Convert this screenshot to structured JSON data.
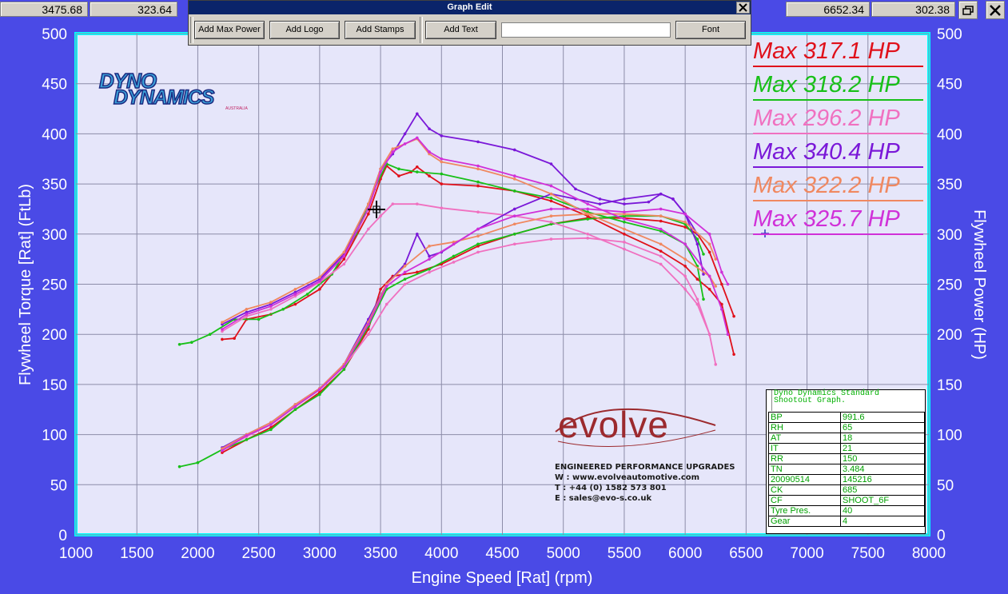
{
  "readouts": {
    "left_x": "3475.68",
    "left_y": "323.64",
    "right_x": "6652.34",
    "right_y": "302.38"
  },
  "dialog": {
    "title": "Graph Edit",
    "buttons": {
      "add_max_power": "Add Max Power",
      "add_logo": "Add Logo",
      "add_stamps": "Add Stamps",
      "add_text": "Add Text",
      "font": "Font"
    },
    "text_value": ""
  },
  "icons": {
    "restore": "restore-window-icon",
    "close": "close-icon",
    "dialog_close": "close-icon",
    "cursor": "crosshair-cursor-icon"
  },
  "logos": {
    "dyno_line1": "DYNO",
    "dyno_line2": "DYNAMICS",
    "dyno_small": "AUSTRALIA",
    "evolve_word": "evolve",
    "evolve_lines": [
      "ENGINEERED PERFORMANCE UPGRADES",
      "W : www.evolveautomotive.com",
      "T : +44 (0) 1582 573 801",
      "E : sales@evo-s.co.uk"
    ]
  },
  "info_box": {
    "header": [
      "Dyno Dynamics Standard",
      "Shootout Graph."
    ],
    "rows": [
      [
        "BP",
        "991.6"
      ],
      [
        "RH",
        "65"
      ],
      [
        "AT",
        "18"
      ],
      [
        "IT",
        "21"
      ],
      [
        "RR",
        "150"
      ],
      [
        "TN",
        "3.484"
      ],
      [
        "20090514",
        "145216"
      ],
      [
        "CK",
        "685"
      ],
      [
        "CF",
        "SHOOT_6F"
      ],
      [
        "Tyre Pres.",
        "40"
      ],
      [
        "Gear",
        "4"
      ]
    ]
  },
  "colors": {
    "background": "#4a4ae6",
    "plot_bg": "#e6e6fa",
    "plot_border": "#00ffff",
    "grid": "#9090a8",
    "axis_text": "#ffffff"
  },
  "chart_data": {
    "type": "line",
    "xlabel": "Engine Speed [Rat] (rpm)",
    "ylabel_left": "Flywheel Torque [Rat] (FtLb)",
    "ylabel_right": "Flywheel Power (HP)",
    "xlim": [
      1000,
      8000
    ],
    "ylim": [
      0,
      500
    ],
    "x_ticks": [
      1000,
      1500,
      2000,
      2500,
      3000,
      3500,
      4000,
      4500,
      5000,
      5500,
      6000,
      6500,
      7000,
      7500,
      8000
    ],
    "y_ticks": [
      0,
      50,
      100,
      150,
      200,
      250,
      300,
      350,
      400,
      450,
      500
    ],
    "grid": true,
    "legend_position": "top-right",
    "series": [
      {
        "name": "Max 317.1 HP",
        "color": "#e0101a",
        "torque": [
          [
            2200,
            195
          ],
          [
            2300,
            196
          ],
          [
            2400,
            215
          ],
          [
            2600,
            220
          ],
          [
            2800,
            230
          ],
          [
            3000,
            245
          ],
          [
            3200,
            275
          ],
          [
            3400,
            320
          ],
          [
            3500,
            355
          ],
          [
            3550,
            368
          ],
          [
            3650,
            358
          ],
          [
            3750,
            362
          ],
          [
            3800,
            367
          ],
          [
            3900,
            358
          ],
          [
            4000,
            350
          ],
          [
            4300,
            348
          ],
          [
            4600,
            343
          ],
          [
            4900,
            333
          ],
          [
            5200,
            318
          ],
          [
            5500,
            300
          ],
          [
            5800,
            283
          ],
          [
            6000,
            268
          ],
          [
            6100,
            255
          ],
          [
            6200,
            245
          ],
          [
            6300,
            230
          ],
          [
            6400,
            180
          ]
        ],
        "power": [
          [
            2200,
            82
          ],
          [
            2400,
            95
          ],
          [
            2600,
            107
          ],
          [
            2800,
            125
          ],
          [
            3000,
            142
          ],
          [
            3200,
            165
          ],
          [
            3400,
            205
          ],
          [
            3500,
            245
          ],
          [
            3600,
            258
          ],
          [
            3800,
            262
          ],
          [
            4000,
            270
          ],
          [
            4300,
            288
          ],
          [
            4600,
            300
          ],
          [
            4900,
            310
          ],
          [
            5200,
            316
          ],
          [
            5500,
            316
          ],
          [
            5800,
            313
          ],
          [
            6000,
            307
          ],
          [
            6100,
            300
          ],
          [
            6200,
            282
          ],
          [
            6300,
            250
          ],
          [
            6400,
            218
          ]
        ]
      },
      {
        "name": "Max 318.2 HP",
        "color": "#18c018",
        "torque": [
          [
            1850,
            190
          ],
          [
            1950,
            192
          ],
          [
            2100,
            200
          ],
          [
            2300,
            215
          ],
          [
            2500,
            215
          ],
          [
            2700,
            225
          ],
          [
            2900,
            240
          ],
          [
            3100,
            260
          ],
          [
            3300,
            300
          ],
          [
            3450,
            345
          ],
          [
            3550,
            370
          ],
          [
            3650,
            365
          ],
          [
            3800,
            362
          ],
          [
            4000,
            360
          ],
          [
            4300,
            352
          ],
          [
            4600,
            343
          ],
          [
            4900,
            336
          ],
          [
            5200,
            322
          ],
          [
            5500,
            312
          ],
          [
            5800,
            303
          ],
          [
            6000,
            290
          ],
          [
            6100,
            268
          ],
          [
            6150,
            235
          ]
        ],
        "power": [
          [
            1850,
            68
          ],
          [
            2000,
            72
          ],
          [
            2200,
            85
          ],
          [
            2400,
            95
          ],
          [
            2600,
            105
          ],
          [
            2800,
            125
          ],
          [
            3000,
            140
          ],
          [
            3200,
            165
          ],
          [
            3400,
            208
          ],
          [
            3550,
            245
          ],
          [
            3700,
            255
          ],
          [
            3900,
            265
          ],
          [
            4100,
            278
          ],
          [
            4300,
            290
          ],
          [
            4600,
            300
          ],
          [
            4900,
            310
          ],
          [
            5200,
            315
          ],
          [
            5500,
            318
          ],
          [
            5800,
            318
          ],
          [
            6000,
            310
          ],
          [
            6100,
            295
          ],
          [
            6150,
            280
          ]
        ]
      },
      {
        "name": "Max 296.2 HP",
        "color": "#f070c0",
        "torque": [
          [
            2200,
            203
          ],
          [
            2400,
            218
          ],
          [
            2600,
            225
          ],
          [
            2800,
            238
          ],
          [
            3000,
            252
          ],
          [
            3200,
            270
          ],
          [
            3400,
            305
          ],
          [
            3500,
            318
          ],
          [
            3600,
            330
          ],
          [
            3800,
            330
          ],
          [
            4000,
            326
          ],
          [
            4300,
            322
          ],
          [
            4600,
            318
          ],
          [
            4900,
            312
          ],
          [
            5200,
            300
          ],
          [
            5500,
            285
          ],
          [
            5800,
            270
          ],
          [
            6000,
            245
          ],
          [
            6100,
            230
          ],
          [
            6200,
            200
          ],
          [
            6250,
            170
          ]
        ],
        "power": [
          [
            2200,
            85
          ],
          [
            2400,
            98
          ],
          [
            2600,
            110
          ],
          [
            2800,
            128
          ],
          [
            3000,
            145
          ],
          [
            3200,
            168
          ],
          [
            3400,
            200
          ],
          [
            3550,
            230
          ],
          [
            3700,
            250
          ],
          [
            3900,
            262
          ],
          [
            4100,
            272
          ],
          [
            4300,
            282
          ],
          [
            4600,
            290
          ],
          [
            4900,
            295
          ],
          [
            5200,
            296
          ],
          [
            5500,
            292
          ],
          [
            5800,
            278
          ],
          [
            6000,
            258
          ],
          [
            6100,
            235
          ],
          [
            6200,
            200
          ]
        ]
      },
      {
        "name": "Max 340.4 HP",
        "color": "#7a18d8",
        "torque": [
          [
            2200,
            210
          ],
          [
            2400,
            222
          ],
          [
            2600,
            230
          ],
          [
            2800,
            242
          ],
          [
            3000,
            255
          ],
          [
            3200,
            280
          ],
          [
            3400,
            330
          ],
          [
            3500,
            365
          ],
          [
            3600,
            380
          ],
          [
            3700,
            400
          ],
          [
            3800,
            420
          ],
          [
            3900,
            405
          ],
          [
            4000,
            398
          ],
          [
            4300,
            392
          ],
          [
            4600,
            384
          ],
          [
            4900,
            370
          ],
          [
            5100,
            345
          ],
          [
            5300,
            335
          ],
          [
            5500,
            330
          ],
          [
            5700,
            332
          ],
          [
            5800,
            340
          ],
          [
            5900,
            335
          ],
          [
            6000,
            320
          ],
          [
            6100,
            290
          ],
          [
            6150,
            260
          ]
        ],
        "power": [
          [
            2200,
            87
          ],
          [
            2400,
            100
          ],
          [
            2600,
            112
          ],
          [
            2800,
            130
          ],
          [
            3000,
            146
          ],
          [
            3200,
            170
          ],
          [
            3400,
            215
          ],
          [
            3550,
            250
          ],
          [
            3700,
            270
          ],
          [
            3800,
            300
          ],
          [
            3900,
            278
          ],
          [
            4000,
            282
          ],
          [
            4300,
            305
          ],
          [
            4600,
            325
          ],
          [
            4900,
            340
          ],
          [
            5100,
            335
          ],
          [
            5300,
            330
          ],
          [
            5500,
            335
          ],
          [
            5800,
            340
          ],
          [
            5900,
            335
          ],
          [
            6000,
            320
          ],
          [
            6100,
            300
          ]
        ]
      },
      {
        "name": "Max 322.2 HP",
        "color": "#f08860",
        "torque": [
          [
            2200,
            212
          ],
          [
            2400,
            225
          ],
          [
            2600,
            232
          ],
          [
            2800,
            245
          ],
          [
            3000,
            257
          ],
          [
            3200,
            282
          ],
          [
            3400,
            330
          ],
          [
            3500,
            365
          ],
          [
            3600,
            385
          ],
          [
            3800,
            395
          ],
          [
            3900,
            380
          ],
          [
            4000,
            372
          ],
          [
            4300,
            365
          ],
          [
            4600,
            355
          ],
          [
            4900,
            340
          ],
          [
            5200,
            320
          ],
          [
            5500,
            305
          ],
          [
            5800,
            290
          ],
          [
            6000,
            275
          ],
          [
            6200,
            258
          ],
          [
            6250,
            248
          ]
        ],
        "power": [
          [
            2200,
            86
          ],
          [
            2400,
            100
          ],
          [
            2600,
            112
          ],
          [
            2800,
            130
          ],
          [
            3000,
            146
          ],
          [
            3200,
            170
          ],
          [
            3400,
            212
          ],
          [
            3550,
            250
          ],
          [
            3700,
            268
          ],
          [
            3900,
            288
          ],
          [
            4100,
            292
          ],
          [
            4300,
            298
          ],
          [
            4600,
            310
          ],
          [
            4900,
            318
          ],
          [
            5200,
            320
          ],
          [
            5500,
            320
          ],
          [
            5800,
            318
          ],
          [
            6000,
            312
          ],
          [
            6200,
            290
          ],
          [
            6250,
            275
          ]
        ]
      },
      {
        "name": "Max 325.7 HP",
        "color": "#d030d8",
        "torque": [
          [
            2200,
            205
          ],
          [
            2400,
            220
          ],
          [
            2600,
            228
          ],
          [
            2800,
            240
          ],
          [
            3000,
            253
          ],
          [
            3200,
            278
          ],
          [
            3400,
            325
          ],
          [
            3500,
            362
          ],
          [
            3600,
            382
          ],
          [
            3700,
            390
          ],
          [
            3800,
            396
          ],
          [
            3900,
            382
          ],
          [
            4000,
            375
          ],
          [
            4300,
            368
          ],
          [
            4600,
            358
          ],
          [
            4900,
            348
          ],
          [
            5200,
            330
          ],
          [
            5500,
            315
          ],
          [
            5800,
            305
          ],
          [
            6000,
            290
          ],
          [
            6200,
            258
          ],
          [
            6300,
            225
          ],
          [
            6350,
            200
          ]
        ],
        "power": [
          [
            2200,
            84
          ],
          [
            2400,
            99
          ],
          [
            2600,
            110
          ],
          [
            2800,
            128
          ],
          [
            3000,
            145
          ],
          [
            3200,
            168
          ],
          [
            3400,
            210
          ],
          [
            3550,
            248
          ],
          [
            3700,
            262
          ],
          [
            3900,
            275
          ],
          [
            4100,
            290
          ],
          [
            4300,
            305
          ],
          [
            4600,
            318
          ],
          [
            4900,
            325
          ],
          [
            5200,
            325
          ],
          [
            5500,
            322
          ],
          [
            5800,
            325
          ],
          [
            6000,
            320
          ],
          [
            6200,
            300
          ],
          [
            6300,
            262
          ],
          [
            6350,
            250
          ]
        ]
      }
    ]
  }
}
